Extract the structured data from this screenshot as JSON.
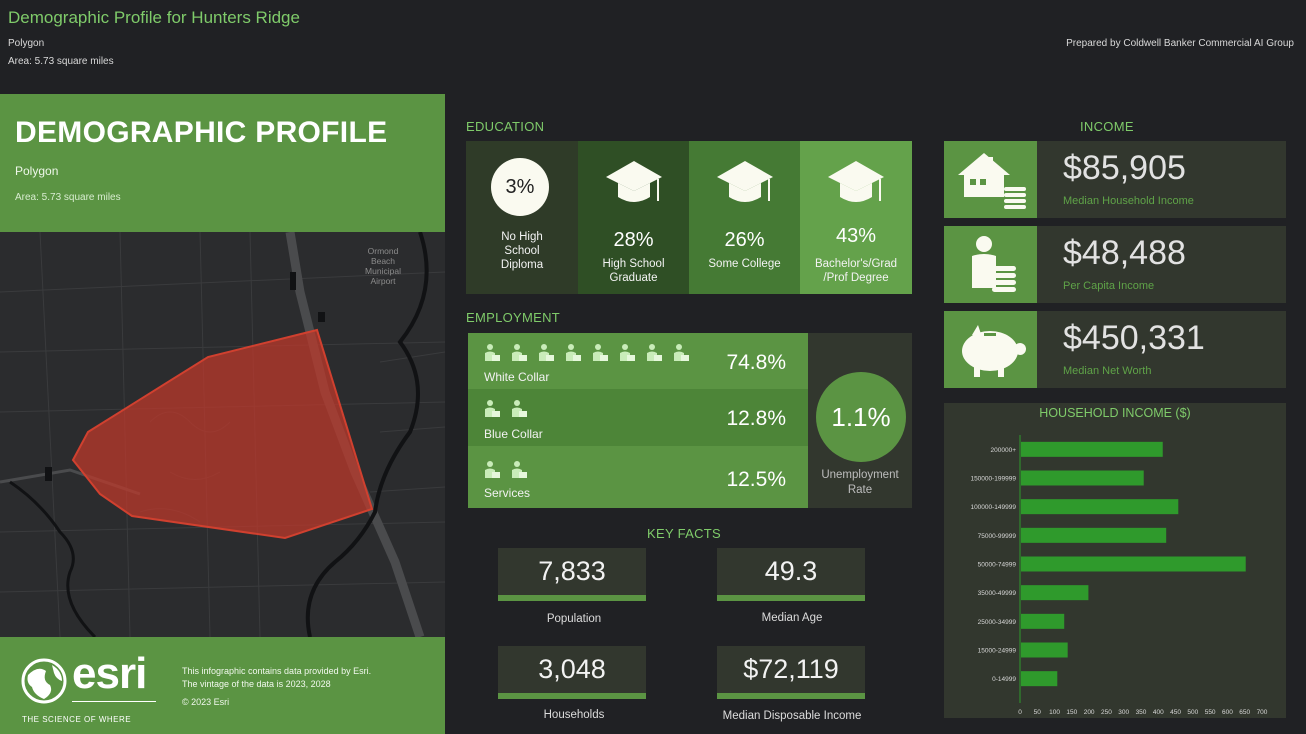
{
  "header": {
    "title": "Demographic Profile for Hunters Ridge",
    "subtitle": "Polygon",
    "area": "Area: 5.73 square miles",
    "prepared_by": "Prepared by Coldwell Banker Commercial AI Group"
  },
  "left_panel": {
    "title": "DEMOGRAPHIC PROFILE",
    "subtitle": "Polygon",
    "area": "Area: 5.73 square miles",
    "map_label": [
      "Ormond",
      "Beach",
      "Municipal",
      "Airport"
    ],
    "logo_text": "esri",
    "logo_tagline": "THE SCIENCE OF WHERE",
    "footer_line1": "This infographic contains data provided by Esri.",
    "footer_line2": "The vintage of the data is 2023, 2028",
    "copyright": "© 2023 Esri"
  },
  "education": {
    "title": "EDUCATION",
    "items": [
      {
        "pct": "3%",
        "label": [
          "No High",
          "School",
          "Diploma"
        ]
      },
      {
        "pct": "28%",
        "label": [
          "High School",
          "Graduate"
        ]
      },
      {
        "pct": "26%",
        "label": [
          "Some College"
        ]
      },
      {
        "pct": "43%",
        "label": [
          "Bachelor's/Grad",
          "/Prof Degree"
        ]
      }
    ],
    "colors": [
      "#2f3b28",
      "#2f4f25",
      "#457a34",
      "#64a24b"
    ]
  },
  "employment": {
    "title": "EMPLOYMENT",
    "rows": [
      {
        "label": "White Collar",
        "value": "74.8%",
        "icons": 8
      },
      {
        "label": "Blue Collar",
        "value": "12.8%",
        "icons": 2
      },
      {
        "label": "Services",
        "value": "12.5%",
        "icons": 2
      }
    ],
    "unemployment_value": "1.1%",
    "unemployment_label": [
      "Unemployment",
      "Rate"
    ]
  },
  "key_facts": {
    "title": "KEY FACTS",
    "items": [
      {
        "value": "7,833",
        "label": "Population"
      },
      {
        "value": "49.3",
        "label": "Median Age"
      },
      {
        "value": "3,048",
        "label": "Households"
      },
      {
        "value": "$72,119",
        "label": "Median Disposable Income"
      }
    ]
  },
  "income": {
    "title": "INCOME",
    "items": [
      {
        "value": "$85,905",
        "label": "Median Household Income",
        "icon": "house-coins-icon"
      },
      {
        "value": "$48,488",
        "label": "Per Capita Income",
        "icon": "person-coins-icon"
      },
      {
        "value": "$450,331",
        "label": "Median Net Worth",
        "icon": "piggy-bank-icon"
      }
    ]
  },
  "chart_data": {
    "type": "bar",
    "orientation": "horizontal",
    "title": "HOUSEHOLD INCOME ($)",
    "categories": [
      "200000+",
      "150000-199999",
      "100000-149999",
      "75000-99999",
      "50000-74999",
      "35000-49999",
      "25000-34999",
      "15000-24999",
      "0-14999"
    ],
    "values": [
      410,
      355,
      455,
      420,
      650,
      195,
      125,
      135,
      105
    ],
    "xlim": [
      0,
      700
    ],
    "xticks": [
      0,
      50,
      100,
      150,
      200,
      250,
      300,
      350,
      400,
      450,
      500,
      550,
      600,
      650,
      700
    ],
    "bar_color": "#2f9a2c",
    "grid": false
  },
  "colors": {
    "accent_green": "#5b9443",
    "title_green": "#7fcb6a",
    "background": "#202124",
    "panel_dark": "#32372e"
  }
}
